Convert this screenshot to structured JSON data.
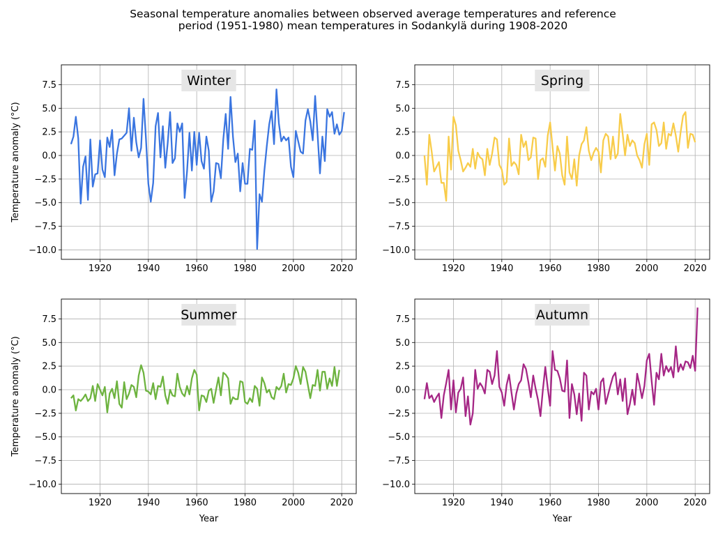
{
  "figure": {
    "title_line1": "Seasonal temperature anomalies between observed average temperatures and reference",
    "title_line2": "period (1951-1980) mean temperatures in Sodankylä during 1908-2020"
  },
  "chart_data": [
    {
      "type": "line",
      "title": "Winter",
      "color": "#3a75e0",
      "xlabel": "",
      "ylabel": "Temperature anomaly (°C)",
      "xlim": [
        1904,
        2026
      ],
      "ylim": [
        -11,
        9.6
      ],
      "xticks": [
        1920,
        1940,
        1960,
        1980,
        2000,
        2020
      ],
      "yticks": [
        -10.0,
        -7.5,
        -5.0,
        -2.5,
        0.0,
        2.5,
        5.0,
        7.5
      ],
      "grid": true,
      "x_start": 1908,
      "values": [
        1.2,
        2.0,
        4.1,
        1.8,
        -5.1,
        -1.2,
        -0.1,
        -4.7,
        1.7,
        -3.3,
        -2.0,
        -1.9,
        1.6,
        -1.5,
        -2.3,
        1.9,
        0.9,
        2.7,
        -2.1,
        0.2,
        1.7,
        1.8,
        2.1,
        2.4,
        5.0,
        0.5,
        4.0,
        1.4,
        -0.2,
        0.8,
        6.0,
        1.8,
        -3.0,
        -4.9,
        -2.9,
        3.1,
        4.5,
        -0.2,
        3.1,
        -1.3,
        1.3,
        4.6,
        -0.8,
        -0.3,
        3.4,
        2.5,
        3.4,
        -4.5,
        -1.7,
        2.4,
        -1.6,
        2.5,
        -1.0,
        2.4,
        -0.6,
        -1.4,
        2.0,
        0.5,
        -4.9,
        -3.8,
        -0.8,
        -0.9,
        -2.4,
        1.7,
        4.4,
        0.7,
        6.2,
        2.0,
        -0.7,
        0.2,
        -3.8,
        -0.8,
        -3.0,
        -3.0,
        0.7,
        0.6,
        3.7,
        -9.9,
        -4.1,
        -4.9,
        -1.6,
        1.0,
        3.3,
        4.7,
        1.2,
        7.0,
        3.4,
        1.5,
        2.0,
        1.6,
        1.9,
        -1.2,
        -2.3,
        2.6,
        1.5,
        0.4,
        0.2,
        3.7,
        4.9,
        3.6,
        1.6,
        6.3,
        2.3,
        -1.9,
        2.0,
        -0.6,
        4.9,
        4.1,
        4.6,
        2.3,
        3.3,
        2.2,
        2.6,
        4.6
      ]
    },
    {
      "type": "line",
      "title": "Spring",
      "color": "#f8cc4a",
      "xlabel": "",
      "ylabel": "",
      "xlim": [
        1904,
        2026
      ],
      "ylim": [
        -11,
        9.6
      ],
      "xticks": [
        1920,
        1940,
        1960,
        1980,
        2000,
        2020
      ],
      "yticks": [
        -10.0,
        -7.5,
        -5.0,
        -2.5,
        0.0,
        2.5,
        5.0,
        7.5
      ],
      "grid": true,
      "x_start": 1908,
      "values": [
        0.0,
        -3.1,
        2.2,
        0.4,
        -1.7,
        -1.2,
        -0.7,
        -2.9,
        -2.9,
        -4.8,
        2.0,
        -1.5,
        4.1,
        3.2,
        0.5,
        -0.5,
        -1.7,
        -1.3,
        -0.8,
        -1.2,
        0.7,
        -1.4,
        0.3,
        -0.2,
        -0.4,
        -2.1,
        0.7,
        -1.0,
        0.2,
        1.9,
        1.7,
        -1.0,
        -1.5,
        -3.1,
        -2.8,
        1.8,
        -1.1,
        -0.7,
        -1.0,
        -2.0,
        2.2,
        0.9,
        1.5,
        -0.5,
        -0.2,
        1.9,
        1.8,
        -2.5,
        -0.5,
        -0.3,
        -1.2,
        2.1,
        3.5,
        0.9,
        -1.6,
        1.0,
        0.2,
        -2.1,
        -3.1,
        2.0,
        -1.8,
        -2.5,
        -0.4,
        -3.2,
        0.0,
        1.2,
        1.6,
        3.0,
        0.5,
        -0.5,
        0.3,
        0.8,
        0.4,
        -1.8,
        1.6,
        2.3,
        2.0,
        -0.4,
        2.0,
        -0.3,
        0.2,
        4.4,
        2.3,
        0.0,
        2.2,
        1.0,
        1.6,
        1.3,
        0.0,
        -0.5,
        -1.3,
        1.2,
        2.3,
        -1.0,
        3.3,
        3.5,
        2.7,
        1.0,
        1.3,
        3.5,
        0.7,
        2.3,
        2.1,
        3.4,
        2.1,
        0.4,
        2.5,
        4.2,
        4.6,
        0.8,
        2.3,
        2.2,
        1.4
      ]
    },
    {
      "type": "line",
      "title": "Summer",
      "color": "#6db33f",
      "xlabel": "Year",
      "ylabel": "Temperature anomaly (°C)",
      "xlim": [
        1904,
        2026
      ],
      "ylim": [
        -11,
        9.6
      ],
      "xticks": [
        1920,
        1940,
        1960,
        1980,
        2000,
        2020
      ],
      "yticks": [
        -10.0,
        -7.5,
        -5.0,
        -2.5,
        0.0,
        2.5,
        5.0,
        7.5
      ],
      "grid": true,
      "x_start": 1908,
      "values": [
        -0.9,
        -0.6,
        -2.2,
        -1.0,
        -1.2,
        -0.9,
        -0.5,
        -1.2,
        -0.9,
        0.4,
        -1.2,
        0.6,
        0.0,
        -0.6,
        0.3,
        -2.4,
        -0.4,
        0.1,
        -0.9,
        0.9,
        -1.5,
        -1.9,
        0.8,
        -1.0,
        -0.4,
        0.5,
        0.3,
        -0.8,
        1.5,
        2.6,
        1.8,
        -0.1,
        -0.2,
        -0.5,
        0.7,
        -1.0,
        0.4,
        0.3,
        1.4,
        -0.6,
        -1.5,
        0.0,
        -0.6,
        -0.7,
        1.7,
        0.3,
        -0.4,
        -0.7,
        0.4,
        -0.5,
        1.2,
        2.1,
        1.6,
        -2.2,
        -0.6,
        -0.7,
        -1.3,
        -0.1,
        0.1,
        -1.4,
        0.0,
        1.3,
        -0.6,
        1.8,
        1.6,
        1.2,
        -1.5,
        -0.8,
        -1.0,
        -1.0,
        0.9,
        0.8,
        -1.3,
        -1.5,
        -0.9,
        -1.3,
        0.4,
        0.1,
        -1.7,
        1.3,
        0.7,
        -0.3,
        0.0,
        -0.8,
        -1.0,
        0.3,
        0.0,
        0.4,
        1.7,
        -0.3,
        0.6,
        0.5,
        1.2,
        2.5,
        1.8,
        0.6,
        2.4,
        1.9,
        0.5,
        -0.9,
        0.5,
        0.4,
        2.1,
        -0.1,
        1.9,
        1.9,
        0.1,
        1.2,
        0.4,
        2.4,
        0.4,
        2.1
      ]
    },
    {
      "type": "line",
      "title": "Autumn",
      "color": "#a52685",
      "xlabel": "Year",
      "ylabel": "",
      "xlim": [
        1904,
        2026
      ],
      "ylim": [
        -11,
        9.6
      ],
      "xticks": [
        1920,
        1940,
        1960,
        1980,
        2000,
        2020
      ],
      "yticks": [
        -10.0,
        -7.5,
        -5.0,
        -2.5,
        0.0,
        2.5,
        5.0,
        7.5
      ],
      "grid": true,
      "x_start": 1908,
      "values": [
        -1.0,
        0.7,
        -0.9,
        -0.6,
        -1.3,
        -0.8,
        -0.4,
        -3.0,
        -0.6,
        0.7,
        2.1,
        -2.1,
        1.0,
        -2.4,
        -0.3,
        0.1,
        1.3,
        -2.8,
        -0.7,
        -3.7,
        -2.5,
        2.1,
        0.1,
        0.7,
        0.3,
        -0.4,
        2.1,
        1.9,
        0.6,
        1.5,
        4.1,
        0.3,
        -0.3,
        -1.7,
        0.5,
        1.6,
        -0.3,
        -2.1,
        -0.4,
        0.6,
        1.0,
        2.7,
        2.2,
        0.8,
        -0.8,
        1.5,
        0.1,
        -1.1,
        -2.8,
        0.0,
        2.4,
        0.2,
        -1.7,
        4.1,
        2.1,
        2.0,
        1.2,
        -0.1,
        -0.2,
        3.1,
        -3.0,
        0.6,
        -0.5,
        -2.6,
        -0.4,
        -3.3,
        1.8,
        1.5,
        -2.1,
        -0.2,
        -0.5,
        0.1,
        -2.1,
        0.8,
        1.2,
        -1.5,
        -0.5,
        0.5,
        1.4,
        1.8,
        -0.5,
        1.1,
        -1.2,
        1.2,
        -2.6,
        -1.5,
        0.0,
        -1.6,
        1.7,
        0.5,
        -0.9,
        0.4,
        3.1,
        3.8,
        0.9,
        -1.6,
        1.8,
        1.1,
        3.8,
        1.5,
        2.5,
        1.9,
        2.4,
        1.3,
        4.6,
        1.9,
        2.7,
        2.1,
        3.0,
        2.9,
        2.3,
        3.6,
        2.0,
        8.7
      ]
    }
  ]
}
